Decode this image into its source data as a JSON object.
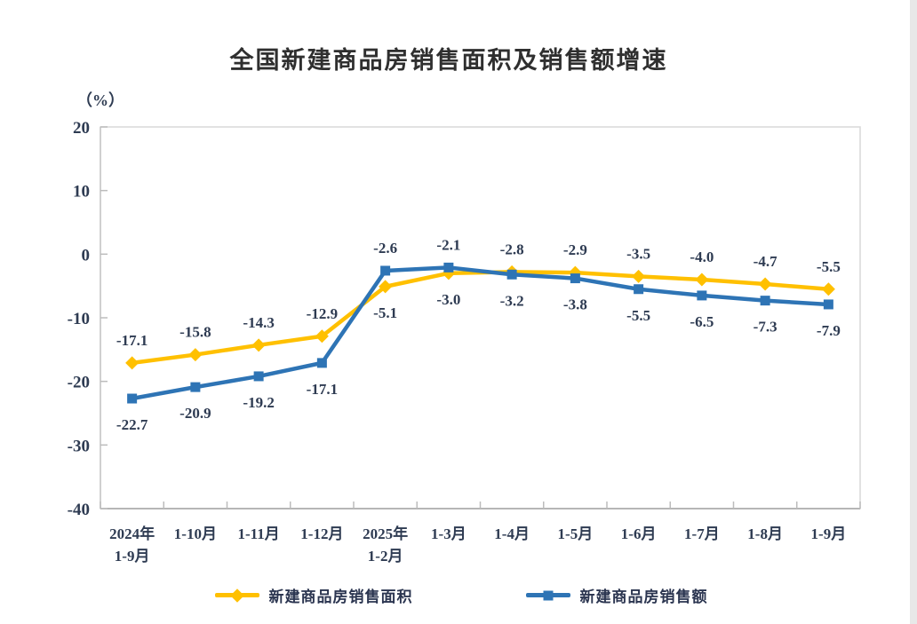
{
  "title": "全国新建商品房销售面积及销售额增速",
  "unit_label": "（%）",
  "colors": {
    "area_series": "#FFC000",
    "amount_series": "#2E74B5",
    "text": "#2e3b52",
    "frame": "#d9d9d9",
    "axis_bottom": "#a3a3a3",
    "axis_left": "#c6c6c6",
    "tick": "#bcbcbc"
  },
  "legend": [
    {
      "label": "新建商品房销售面积",
      "color": "#FFC000",
      "marker": "diamond"
    },
    {
      "label": "新建商品房销售额",
      "color": "#2E74B5",
      "marker": "square"
    }
  ],
  "chart_data": {
    "type": "line",
    "title": "全国新建商品房销售面积及销售额增速",
    "ylabel": "（%）",
    "xlabel": "",
    "ylim": [
      -40,
      20
    ],
    "yticks": [
      20,
      10,
      0,
      -10,
      -20,
      -30,
      -40
    ],
    "grid": false,
    "legend_position": "bottom",
    "categories": [
      "2024年\n1-9月",
      "1-10月",
      "1-11月",
      "1-12月",
      "2025年\n1-2月",
      "1-3月",
      "1-4月",
      "1-5月",
      "1-6月",
      "1-7月",
      "1-8月",
      "1-9月"
    ],
    "series": [
      {
        "name": "新建商品房销售面积",
        "color": "#FFC000",
        "marker": "diamond",
        "values": [
          -17.1,
          -15.8,
          -14.3,
          -12.9,
          -5.1,
          -3.0,
          -2.8,
          -2.9,
          -3.5,
          -4.0,
          -4.7,
          -5.5
        ],
        "label_side": [
          "above",
          "above",
          "above",
          "above",
          "below",
          "below",
          "above",
          "above",
          "above",
          "above",
          "above",
          "above"
        ]
      },
      {
        "name": "新建商品房销售额",
        "color": "#2E74B5",
        "marker": "square",
        "values": [
          -22.7,
          -20.9,
          -19.2,
          -17.1,
          -2.6,
          -2.1,
          -3.2,
          -3.8,
          -5.5,
          -6.5,
          -7.3,
          -7.9
        ],
        "label_side": [
          "below",
          "below",
          "below",
          "below",
          "above",
          "above",
          "below",
          "below",
          "below",
          "below",
          "below",
          "below"
        ]
      }
    ]
  }
}
